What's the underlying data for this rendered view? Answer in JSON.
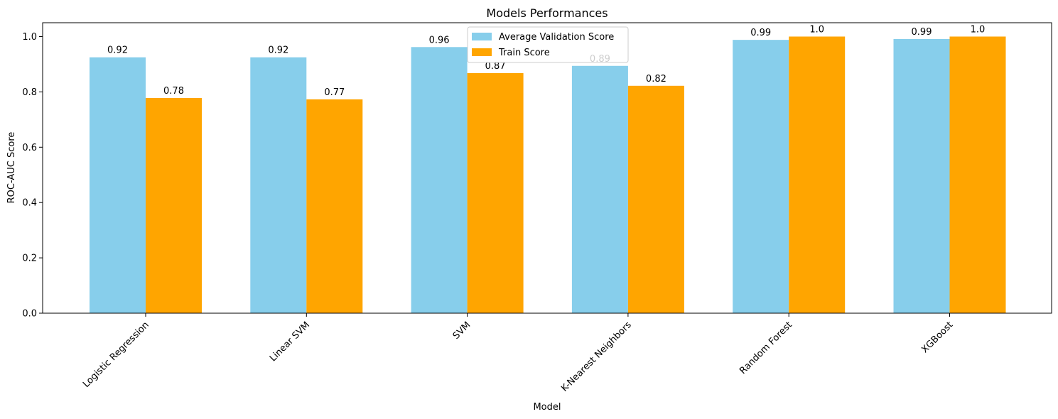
{
  "chart_data": {
    "type": "bar",
    "title": "Models Performances",
    "xlabel": "Model",
    "ylabel": "ROC-AUC Score",
    "ylim": [
      0,
      1.05
    ],
    "yticks": [
      "0.0",
      "0.2",
      "0.4",
      "0.6",
      "0.8",
      "1.0"
    ],
    "categories": [
      "Logistic Regression",
      "Linear SVM",
      "SVM",
      "K-Nearest Neighbors",
      "Random Forest",
      "XGBoost"
    ],
    "series": [
      {
        "name": "Average Validation Score",
        "color": "#87CEEB",
        "values": [
          0.925,
          0.925,
          0.962,
          0.894,
          0.988,
          0.991
        ],
        "labels": [
          "0.92",
          "0.92",
          "0.96",
          "0.89",
          "0.99",
          "0.99"
        ]
      },
      {
        "name": "Train Score",
        "color": "#FFA500",
        "values": [
          0.778,
          0.773,
          0.868,
          0.822,
          1.0,
          1.0
        ],
        "labels": [
          "0.78",
          "0.77",
          "0.87",
          "0.82",
          "1.0",
          "1.0"
        ]
      }
    ],
    "legend": "upper-center",
    "grid": false
  }
}
